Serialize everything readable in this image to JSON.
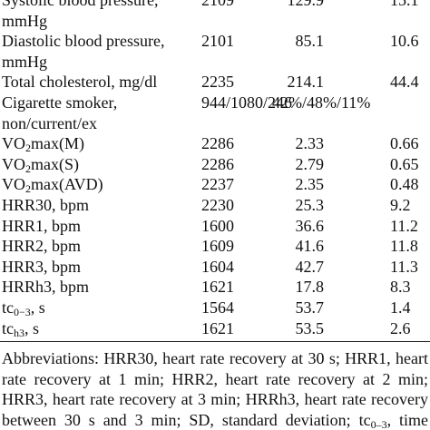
{
  "table": {
    "rows": [
      {
        "label": [
          [
            "Systolic blood pressure,"
          ],
          [
            "mmHg"
          ]
        ],
        "n": "2109",
        "mean": "129.9",
        "sd": "15.1"
      },
      {
        "label": [
          [
            "Diastolic blood pressure,"
          ],
          [
            "mmHg"
          ]
        ],
        "n": "2101",
        "mean": "85.1",
        "sd": "10.6"
      },
      {
        "label": [
          [
            "Total cholesterol, mg/dl"
          ]
        ],
        "n": "2235",
        "mean": "214.1",
        "sd": "44.4"
      },
      {
        "label": [
          [
            "Cigarette smoker,"
          ],
          [
            "non/current/ex"
          ]
        ],
        "n": "944/1080/246",
        "mean": "42%/48%/11%"
      },
      {
        "label": [
          [
            "VO",
            "2",
            "max(M)"
          ]
        ],
        "n": "2286",
        "mean": "2.33",
        "sd": "0.66"
      },
      {
        "label": [
          [
            "VO",
            "2",
            "max(S)"
          ]
        ],
        "n": "2286",
        "mean": "2.79",
        "sd": "0.65"
      },
      {
        "label": [
          [
            "VO",
            "2",
            "max(AVD)"
          ]
        ],
        "n": "2237",
        "mean": "2.35",
        "sd": "0.48"
      },
      {
        "label": [
          [
            "HRR30, bpm"
          ]
        ],
        "n": "2230",
        "mean": "25.3",
        "sd": "9.2"
      },
      {
        "label": [
          [
            "HRR1, bpm"
          ]
        ],
        "n": "1600",
        "mean": "36.6",
        "sd": "11.2"
      },
      {
        "label": [
          [
            "HRR2, bpm"
          ]
        ],
        "n": "1609",
        "mean": "41.6",
        "sd": "11.8"
      },
      {
        "label": [
          [
            "HRR3, bpm"
          ]
        ],
        "n": "1604",
        "mean": "42.7",
        "sd": "11.3"
      },
      {
        "label": [
          [
            "HRRh3, bpm"
          ]
        ],
        "n": "1621",
        "mean": "17.8",
        "sd": "8.3"
      },
      {
        "label": [
          [
            "tc",
            "0−3",
            ", s"
          ]
        ],
        "n": "1564",
        "mean": "53.7",
        "sd": "1.4"
      },
      {
        "label": [
          [
            "tc",
            "h3",
            ", s"
          ]
        ],
        "n": "1621",
        "mean": "53.5",
        "sd": "2.6"
      }
    ]
  },
  "footnote": [
    [
      "Abbreviations: HRR30, heart rate recovery at 30 s; HRR1, heart"
    ],
    [
      "rate recovery at 1 min; HRR2, heart rate recovery at 2 min;"
    ],
    [
      "HRR3, heart rate recovery at 3 min; HRRh3, heart rate recovery"
    ],
    [
      "between 30 s and 3 min; SD, standard deviation; tc",
      "0–3",
      ", time"
    ],
    [
      "constant of heart rate recovery over 0–3 min; tc",
      "h3",
      ", time"
    ]
  ]
}
